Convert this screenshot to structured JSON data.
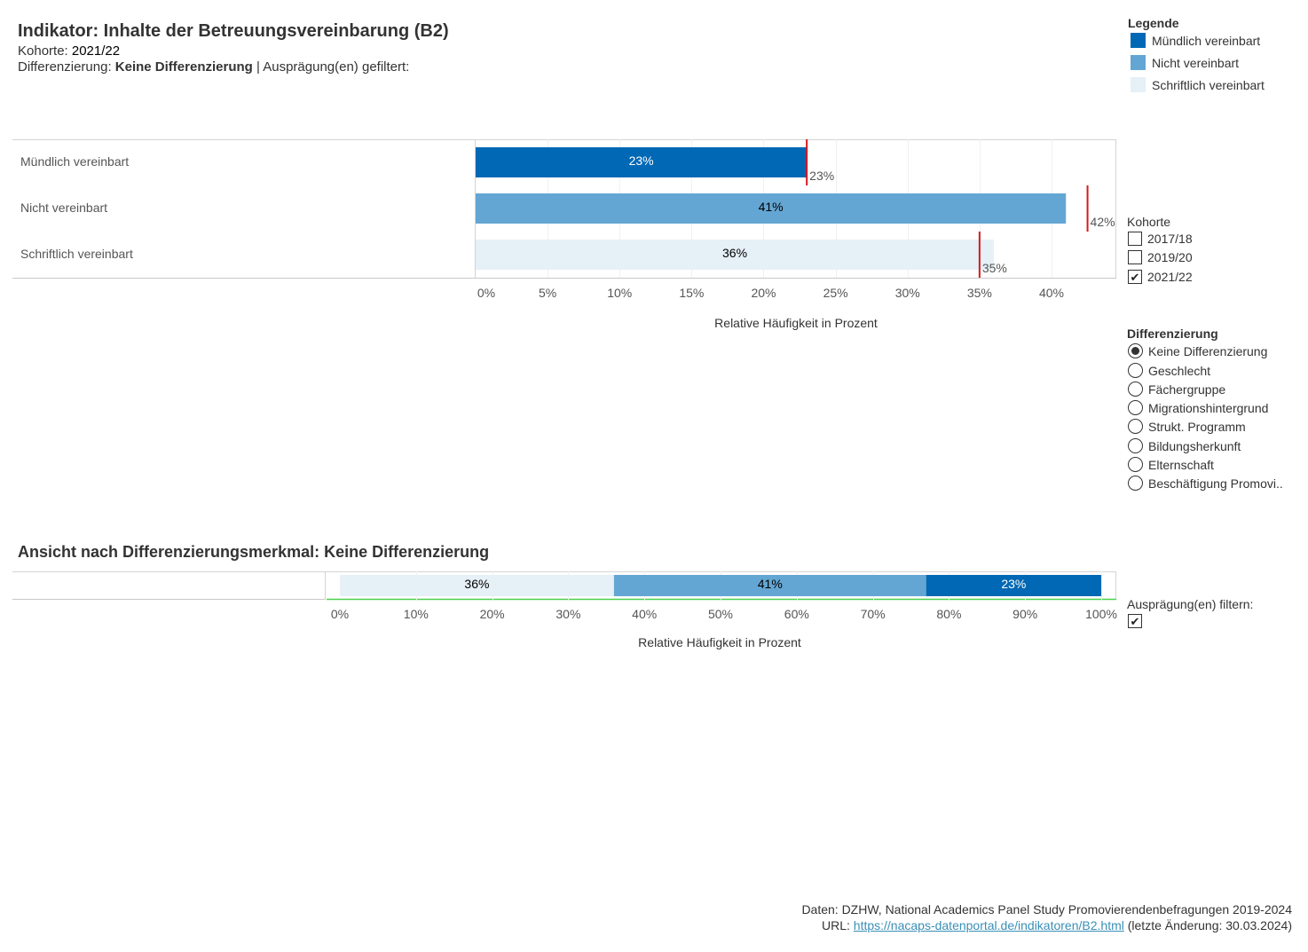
{
  "header": {
    "title": "Indikator: Inhalte der Betreuungsvereinbarung (B2)",
    "kohorte_label": "Kohorte: ",
    "kohorte_value": "2021/22",
    "diff_label": "Differenzierung: ",
    "diff_value": "Keine Differenzierung",
    "diff_suffix": " | Ausprägung(en) gefiltert:"
  },
  "legend": {
    "title": "Legende",
    "items": [
      {
        "label": "Mündlich vereinbart",
        "color": "#0068b4"
      },
      {
        "label": "Nicht vereinbart",
        "color": "#64a6d3"
      },
      {
        "label": "Schriftlich vereinbart",
        "color": "#e6f0f7"
      }
    ]
  },
  "kohorte_filter": {
    "label": "Kohorte",
    "options": [
      {
        "label": "2017/18",
        "checked": false
      },
      {
        "label": "2019/20",
        "checked": false
      },
      {
        "label": "2021/22",
        "checked": true
      }
    ]
  },
  "differenzierung": {
    "label": "Differenzierung",
    "options": [
      {
        "label": "Keine Differenzierung",
        "selected": true
      },
      {
        "label": "Geschlecht",
        "selected": false
      },
      {
        "label": "Fächergruppe",
        "selected": false
      },
      {
        "label": "Migrationshintergrund",
        "selected": false
      },
      {
        "label": "Strukt. Programm",
        "selected": false
      },
      {
        "label": "Bildungsherkunft",
        "selected": false
      },
      {
        "label": "Elternschaft",
        "selected": false
      },
      {
        "label": "Beschäftigung Promovi.."
      }
    ]
  },
  "auspraegung_filter": {
    "label": "Ausprägung(en) filtern:",
    "checked": true,
    "check_glyph": "✔"
  },
  "section2": {
    "title": "Ansicht nach Differenzierungsmerkmal: Keine Differenzierung"
  },
  "chart_data": [
    {
      "type": "bar",
      "orientation": "horizontal",
      "categories": [
        "Mündlich vereinbart",
        "Nicht vereinbart",
        "Schriftlich vereinbart"
      ],
      "values": [
        23,
        41,
        36
      ],
      "value_labels": [
        "23%",
        "41%",
        "36%"
      ],
      "bar_colors": [
        "#0068b4",
        "#64a6d3",
        "#e6f0f7"
      ],
      "label_colors": [
        "#ffffff",
        "#000000",
        "#000000"
      ],
      "reference": {
        "values": [
          23,
          42.5,
          35
        ],
        "labels": [
          "23%",
          "42%",
          "35%"
        ],
        "color": "#d7191c"
      },
      "xlabel": "Relative Häufigkeit in Prozent",
      "xlim": [
        0,
        44.5
      ],
      "xticks": [
        0,
        5,
        10,
        15,
        20,
        25,
        30,
        35,
        40
      ],
      "xtick_labels": [
        "0%",
        "5%",
        "10%",
        "15%",
        "20%",
        "25%",
        "30%",
        "35%",
        "40%"
      ],
      "grid": true
    },
    {
      "type": "bar",
      "orientation": "horizontal",
      "stacked": true,
      "series": [
        {
          "name": "Schriftlich vereinbart",
          "values": [
            36
          ],
          "label": "36%",
          "color": "#e6f0f7",
          "label_color": "#000000"
        },
        {
          "name": "Nicht vereinbart",
          "values": [
            41
          ],
          "label": "41%",
          "color": "#64a6d3",
          "label_color": "#000000"
        },
        {
          "name": "Mündlich vereinbart",
          "values": [
            23
          ],
          "label": "23%",
          "color": "#0068b4",
          "label_color": "#ffffff"
        }
      ],
      "xlabel": "Relative Häufigkeit in Prozent",
      "xlim": [
        0,
        100
      ],
      "xticks": [
        0,
        10,
        20,
        30,
        40,
        50,
        60,
        70,
        80,
        90,
        100
      ],
      "xtick_labels": [
        "0%",
        "10%",
        "20%",
        "30%",
        "40%",
        "50%",
        "60%",
        "70%",
        "80%",
        "90%",
        "100%"
      ]
    }
  ],
  "footer": {
    "source": "Daten: DZHW, National Academics Panel Study Promovierendenbefragungen 2019-2024",
    "url_label": "URL: ",
    "url": "https://nacaps-datenportal.de/indikatoren/B2.html",
    "url_suffix": " (letzte Änderung: 30.03.2024)"
  }
}
